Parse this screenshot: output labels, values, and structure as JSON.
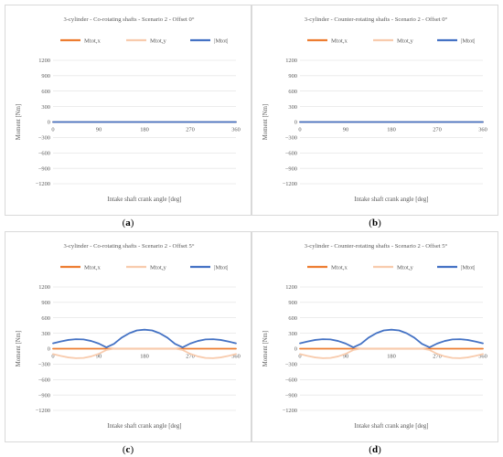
{
  "colors": {
    "mx": "#ed7d31",
    "my": "#f8cbad",
    "mag": "#4472c4",
    "grid": "#d9d9d9",
    "axis": "#bfbfbf",
    "text": "#595959"
  },
  "chart_data": [
    {
      "type": "line",
      "panel_id": "a",
      "caption": "a",
      "title": "3-cylinder - Co-rotating shafts - Scenario 2 - Offset 0°",
      "xlabel": "Intake shaft crank angle [deg]",
      "ylabel": "Moment [Nm]",
      "xlim": [
        0,
        360
      ],
      "ylim": [
        -1200,
        1200
      ],
      "xticks": [
        "0",
        "90",
        "180",
        "270",
        "360"
      ],
      "yticks": [
        "1200",
        "900",
        "600",
        "300",
        "0",
        "−300",
        "−600",
        "−900",
        "−1200"
      ],
      "grid": "horizontal",
      "legend_position": "top",
      "x": [
        0,
        360
      ],
      "series": [
        {
          "name": "Mtot,x",
          "values": [
            0,
            0
          ]
        },
        {
          "name": "Mtot,y",
          "values": [
            0,
            0
          ]
        },
        {
          "name": "|Mtot|",
          "values": [
            0,
            0
          ]
        }
      ]
    },
    {
      "type": "line",
      "panel_id": "b",
      "caption": "b",
      "title": "3-cylinder - Counter-rotating shafts - Scenario 2 - Offset 0°",
      "xlabel": "Intake shaft crank angle [deg]",
      "ylabel": "Moment [Nm]",
      "xlim": [
        0,
        360
      ],
      "ylim": [
        -1200,
        1200
      ],
      "xticks": [
        "0",
        "90",
        "180",
        "270",
        "360"
      ],
      "yticks": [
        "1200",
        "900",
        "600",
        "300",
        "0",
        "−300",
        "−600",
        "−900",
        "−1200"
      ],
      "grid": "horizontal",
      "legend_position": "top",
      "x": [
        0,
        360
      ],
      "series": [
        {
          "name": "Mtot,x",
          "values": [
            0,
            0
          ]
        },
        {
          "name": "Mtot,y",
          "values": [
            0,
            0
          ]
        },
        {
          "name": "|Mtot|",
          "values": [
            0,
            0
          ]
        }
      ]
    },
    {
      "type": "line",
      "panel_id": "c",
      "caption": "c",
      "title": "3-cylinder - Co-rotating shafts - Scenario 2 - Offset 5°",
      "xlabel": "Intake shaft crank angle [deg]",
      "ylabel": "Moment [Nm]",
      "xlim": [
        0,
        360
      ],
      "ylim": [
        -1200,
        1200
      ],
      "xticks": [
        "0",
        "90",
        "180",
        "270",
        "360"
      ],
      "yticks": [
        "1200",
        "900",
        "600",
        "300",
        "0",
        "−300",
        "−600",
        "−900",
        "−1200"
      ],
      "grid": "horizontal",
      "legend_position": "top",
      "x": [
        0,
        15,
        30,
        45,
        60,
        75,
        90,
        105,
        120,
        135,
        150,
        165,
        180,
        195,
        210,
        225,
        240,
        255,
        270,
        285,
        300,
        315,
        330,
        345,
        360
      ],
      "series": [
        {
          "name": "Mtot,x",
          "values": [
            0,
            0,
            0,
            0,
            0,
            0,
            0,
            0,
            0,
            0,
            0,
            0,
            0,
            0,
            0,
            0,
            0,
            0,
            0,
            0,
            0,
            0,
            0,
            0,
            0
          ]
        },
        {
          "name": "Mtot,y",
          "values": [
            -105,
            -140,
            -170,
            -185,
            -180,
            -150,
            -100,
            -25,
            0,
            0,
            0,
            0,
            0,
            0,
            0,
            0,
            0,
            -25,
            -100,
            -150,
            -180,
            -185,
            -170,
            -140,
            -105
          ]
        },
        {
          "name": "|Mtot|",
          "values": [
            105,
            140,
            170,
            185,
            180,
            150,
            100,
            25,
            95,
            215,
            300,
            355,
            370,
            355,
            300,
            215,
            95,
            25,
            100,
            150,
            180,
            185,
            170,
            140,
            105
          ]
        }
      ]
    },
    {
      "type": "line",
      "panel_id": "d",
      "caption": "d",
      "title": "3-cylinder - Counter-rotating shafts - Scenario 2 - Offset 5°",
      "xlabel": "Intake shaft crank angle [deg]",
      "ylabel": "Moment [Nm]",
      "xlim": [
        0,
        360
      ],
      "ylim": [
        -1200,
        1200
      ],
      "xticks": [
        "0",
        "90",
        "180",
        "270",
        "360"
      ],
      "yticks": [
        "1200",
        "900",
        "600",
        "300",
        "0",
        "−300",
        "−600",
        "−900",
        "−1200"
      ],
      "grid": "horizontal",
      "legend_position": "top",
      "x": [
        0,
        15,
        30,
        45,
        60,
        75,
        90,
        105,
        120,
        135,
        150,
        165,
        180,
        195,
        210,
        225,
        240,
        255,
        270,
        285,
        300,
        315,
        330,
        345,
        360
      ],
      "series": [
        {
          "name": "Mtot,x",
          "values": [
            0,
            0,
            0,
            0,
            0,
            0,
            0,
            0,
            0,
            0,
            0,
            0,
            0,
            0,
            0,
            0,
            0,
            0,
            0,
            0,
            0,
            0,
            0,
            0,
            0
          ]
        },
        {
          "name": "Mtot,y",
          "values": [
            -105,
            -140,
            -170,
            -185,
            -180,
            -150,
            -100,
            -25,
            0,
            0,
            0,
            0,
            0,
            0,
            0,
            0,
            0,
            -25,
            -100,
            -150,
            -180,
            -185,
            -170,
            -140,
            -105
          ]
        },
        {
          "name": "|Mtot|",
          "values": [
            105,
            140,
            170,
            185,
            180,
            150,
            100,
            25,
            95,
            215,
            300,
            355,
            370,
            355,
            300,
            215,
            95,
            25,
            100,
            150,
            180,
            185,
            170,
            140,
            105
          ]
        }
      ]
    }
  ]
}
